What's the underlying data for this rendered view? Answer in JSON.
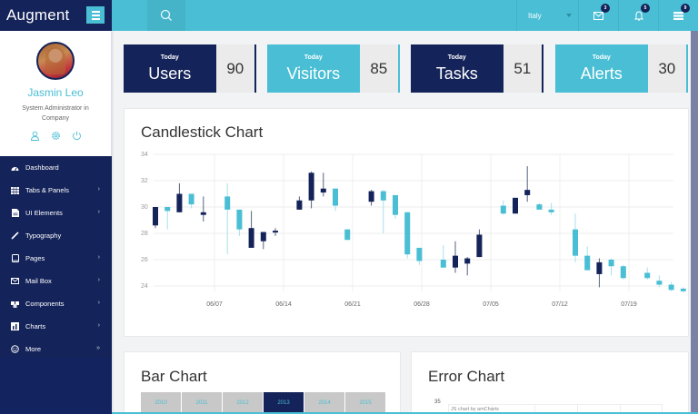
{
  "app": {
    "title": "Augment"
  },
  "topbar": {
    "search_icon": "search-icon",
    "language": "Italy",
    "notifications": [
      {
        "icon": "mail-icon",
        "count": "3"
      },
      {
        "icon": "bell-icon",
        "count": "5"
      },
      {
        "icon": "list-icon",
        "count": "9"
      }
    ]
  },
  "profile": {
    "name": "Jasmin Leo",
    "role": "System Administrator in Company",
    "actions": [
      "user-icon",
      "settings-icon",
      "power-icon"
    ]
  },
  "sidebar": {
    "items": [
      {
        "label": "Dashboard",
        "icon": "dashboard-icon",
        "has_children": false
      },
      {
        "label": "Tabs & Panels",
        "icon": "table-icon",
        "has_children": true
      },
      {
        "label": "UI Elements",
        "icon": "file-icon",
        "has_children": true
      },
      {
        "label": "Typography",
        "icon": "pencil-icon",
        "has_children": false
      },
      {
        "label": "Pages",
        "icon": "tablet-icon",
        "has_children": true
      },
      {
        "label": "Mail Box",
        "icon": "envelope-icon",
        "has_children": true
      },
      {
        "label": "Components",
        "icon": "cubes-icon",
        "has_children": true
      },
      {
        "label": "Charts",
        "icon": "chart-icon",
        "has_children": true
      },
      {
        "label": "More",
        "icon": "smile-icon",
        "has_children": true
      }
    ]
  },
  "stats": [
    {
      "caption": "Today",
      "label": "Users",
      "value": "90",
      "theme": "dark"
    },
    {
      "caption": "Today",
      "label": "Visitors",
      "value": "85",
      "theme": "light"
    },
    {
      "caption": "Today",
      "label": "Tasks",
      "value": "51",
      "theme": "dark"
    },
    {
      "caption": "Today",
      "label": "Alerts",
      "value": "30",
      "theme": "light"
    }
  ],
  "candlestick_panel": {
    "title": "Candlestick Chart"
  },
  "bar_panel": {
    "title": "Bar Chart",
    "tabs": [
      "2010",
      "2011",
      "2012",
      "2013",
      "2014",
      "2015"
    ],
    "active_tab": "2013"
  },
  "error_panel": {
    "title": "Error Chart",
    "y_top_label": "35",
    "credit": "JS chart by amCharts"
  },
  "colors": {
    "navy": "#142359",
    "teal": "#49bed4",
    "stat_value_bg": "#ebebeb"
  },
  "chart_data": {
    "type": "candlestick",
    "title": "Candlestick Chart",
    "xlabel": "",
    "ylabel": "",
    "ylim": [
      24,
      34
    ],
    "y_ticks": [
      24,
      26,
      28,
      30,
      32,
      34
    ],
    "x_ticks": [
      "06/07",
      "06/14",
      "06/21",
      "06/28",
      "07/05",
      "07/12",
      "07/19"
    ],
    "grid": true,
    "legend": null,
    "series": [
      {
        "x": 0,
        "open": 28.6,
        "high": 30.0,
        "low": 28.4,
        "close": 30.0,
        "dir": "up"
      },
      {
        "x": 1,
        "open": 30.0,
        "high": 30.0,
        "low": 28.3,
        "close": 29.7,
        "dir": "down"
      },
      {
        "x": 2,
        "open": 29.6,
        "high": 31.8,
        "low": 29.6,
        "close": 31.0,
        "dir": "up"
      },
      {
        "x": 3,
        "open": 31.0,
        "high": 31.0,
        "low": 29.9,
        "close": 30.2,
        "dir": "down"
      },
      {
        "x": 4,
        "open": 29.4,
        "high": 30.8,
        "low": 28.9,
        "close": 29.6,
        "dir": "up"
      },
      {
        "x": 6,
        "open": 30.8,
        "high": 31.8,
        "low": 26.4,
        "close": 29.8,
        "dir": "down"
      },
      {
        "x": 7,
        "open": 29.8,
        "high": 29.8,
        "low": 27.8,
        "close": 28.3,
        "dir": "down"
      },
      {
        "x": 8,
        "open": 26.9,
        "high": 29.7,
        "low": 26.9,
        "close": 28.4,
        "dir": "up"
      },
      {
        "x": 9,
        "open": 27.4,
        "high": 28.1,
        "low": 26.8,
        "close": 28.1,
        "dir": "up"
      },
      {
        "x": 10,
        "open": 28.1,
        "high": 28.4,
        "low": 27.8,
        "close": 28.2,
        "dir": "up"
      },
      {
        "x": 12,
        "open": 29.8,
        "high": 30.8,
        "low": 29.8,
        "close": 30.5,
        "dir": "up"
      },
      {
        "x": 13,
        "open": 30.5,
        "high": 32.7,
        "low": 29.9,
        "close": 32.6,
        "dir": "up"
      },
      {
        "x": 14,
        "open": 31.1,
        "high": 32.6,
        "low": 30.8,
        "close": 31.4,
        "dir": "up"
      },
      {
        "x": 15,
        "open": 31.4,
        "high": 31.4,
        "low": 29.7,
        "close": 30.1,
        "dir": "down"
      },
      {
        "x": 16,
        "open": 28.3,
        "high": 28.3,
        "low": 27.7,
        "close": 27.5,
        "dir": "down"
      },
      {
        "x": 18,
        "open": 30.4,
        "high": 31.3,
        "low": 30.1,
        "close": 31.2,
        "dir": "up"
      },
      {
        "x": 19,
        "open": 31.2,
        "high": 31.3,
        "low": 28.0,
        "close": 30.5,
        "dir": "down"
      },
      {
        "x": 20,
        "open": 30.9,
        "high": 30.9,
        "low": 29.1,
        "close": 29.4,
        "dir": "down"
      },
      {
        "x": 21,
        "open": 29.6,
        "high": 29.6,
        "low": 26.1,
        "close": 26.4,
        "dir": "down"
      },
      {
        "x": 22,
        "open": 26.9,
        "high": 26.9,
        "low": 25.6,
        "close": 25.9,
        "dir": "down"
      },
      {
        "x": 24,
        "open": 26.0,
        "high": 27.1,
        "low": 25.4,
        "close": 25.4,
        "dir": "down"
      },
      {
        "x": 25,
        "open": 25.4,
        "high": 27.4,
        "low": 25.0,
        "close": 26.3,
        "dir": "up"
      },
      {
        "x": 26,
        "open": 25.7,
        "high": 26.2,
        "low": 24.8,
        "close": 26.1,
        "dir": "up"
      },
      {
        "x": 27,
        "open": 26.2,
        "high": 28.3,
        "low": 26.2,
        "close": 27.9,
        "dir": "up"
      },
      {
        "x": 29,
        "open": 30.1,
        "high": 30.5,
        "low": 29.4,
        "close": 29.5,
        "dir": "down"
      },
      {
        "x": 30,
        "open": 29.5,
        "high": 30.7,
        "low": 29.5,
        "close": 30.7,
        "dir": "up"
      },
      {
        "x": 31,
        "open": 30.9,
        "high": 33.1,
        "low": 30.4,
        "close": 31.3,
        "dir": "up"
      },
      {
        "x": 32,
        "open": 30.2,
        "high": 30.3,
        "low": 29.9,
        "close": 29.8,
        "dir": "down"
      },
      {
        "x": 33,
        "open": 29.8,
        "high": 30.3,
        "low": 29.4,
        "close": 29.6,
        "dir": "down"
      },
      {
        "x": 35,
        "open": 28.3,
        "high": 29.5,
        "low": 25.8,
        "close": 26.3,
        "dir": "down"
      },
      {
        "x": 36,
        "open": 26.3,
        "high": 27.0,
        "low": 25.6,
        "close": 25.2,
        "dir": "down"
      },
      {
        "x": 37,
        "open": 24.9,
        "high": 26.1,
        "low": 23.9,
        "close": 25.8,
        "dir": "up"
      },
      {
        "x": 38,
        "open": 26.0,
        "high": 26.1,
        "low": 24.8,
        "close": 25.5,
        "dir": "down"
      },
      {
        "x": 39,
        "open": 25.5,
        "high": 25.6,
        "low": 24.5,
        "close": 24.6,
        "dir": "down"
      },
      {
        "x": 41,
        "open": 25.0,
        "high": 25.4,
        "low": 24.5,
        "close": 24.6,
        "dir": "down"
      },
      {
        "x": 42,
        "open": 24.4,
        "high": 24.8,
        "low": 23.9,
        "close": 24.1,
        "dir": "down"
      },
      {
        "x": 43,
        "open": 24.1,
        "high": 24.3,
        "low": 23.6,
        "close": 23.7,
        "dir": "down"
      },
      {
        "x": 44,
        "open": 23.8,
        "high": 23.9,
        "low": 23.5,
        "close": 23.6,
        "dir": "down"
      }
    ]
  }
}
